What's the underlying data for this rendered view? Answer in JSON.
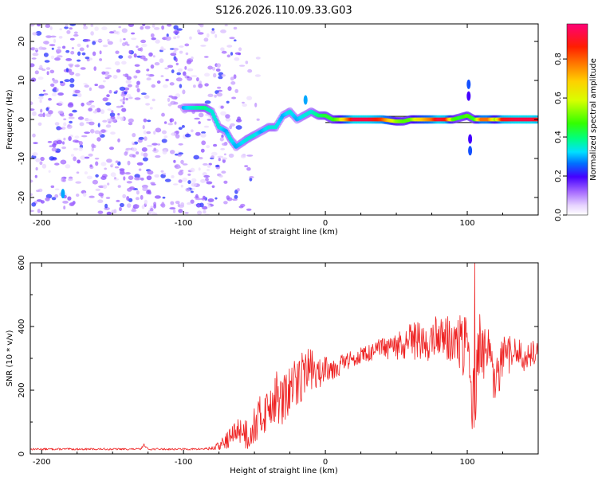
{
  "title": "S126.2026.110.09.33.G03",
  "chart_data": [
    {
      "type": "heatmap",
      "name": "spectrogram",
      "xlabel": "Height of straight line (km)",
      "ylabel": "Frequency (Hz)",
      "xlim": [
        -208,
        150
      ],
      "ylim": [
        -24.5,
        24.5
      ],
      "x_ticks": [
        -200,
        -100,
        0,
        100
      ],
      "x_tick_labels": [
        "-200",
        "-100",
        "0",
        "100"
      ],
      "y_ticks": [
        -20,
        -10,
        0,
        10,
        20
      ],
      "y_tick_labels": [
        "-20",
        "-10",
        "0",
        "10",
        "20"
      ],
      "colorbar": {
        "label": "Normalized spectral amplitude",
        "range": [
          0,
          0.98
        ],
        "ticks": [
          0.0,
          0.2,
          0.4,
          0.6,
          0.8
        ],
        "tick_labels": [
          "0.0",
          "0.2",
          "0.4",
          "0.6",
          "0.8"
        ]
      },
      "ridge": [
        {
          "x": -100,
          "y": 3,
          "a": 0.3
        },
        {
          "x": -95,
          "y": 3,
          "a": 0.35
        },
        {
          "x": -85,
          "y": 3,
          "a": 0.4
        },
        {
          "x": -80,
          "y": 2,
          "a": 0.35
        },
        {
          "x": -75,
          "y": -2,
          "a": 0.35
        },
        {
          "x": -70,
          "y": -3,
          "a": 0.3
        },
        {
          "x": -67,
          "y": -5,
          "a": 0.35
        },
        {
          "x": -63,
          "y": -7,
          "a": 0.3
        },
        {
          "x": -55,
          "y": -5,
          "a": 0.35
        },
        {
          "x": -50,
          "y": -4,
          "a": 0.35
        },
        {
          "x": -45,
          "y": -3,
          "a": 0.3
        },
        {
          "x": -40,
          "y": -2,
          "a": 0.35
        },
        {
          "x": -35,
          "y": -2,
          "a": 0.35
        },
        {
          "x": -30,
          "y": 1,
          "a": 0.3
        },
        {
          "x": -25,
          "y": 2,
          "a": 0.35
        },
        {
          "x": -20,
          "y": 0,
          "a": 0.3
        },
        {
          "x": -15,
          "y": 1,
          "a": 0.35
        },
        {
          "x": -10,
          "y": 2,
          "a": 0.35
        },
        {
          "x": -5,
          "y": 1,
          "a": 0.4
        },
        {
          "x": 0,
          "y": 1,
          "a": 0.45
        },
        {
          "x": 5,
          "y": 0,
          "a": 0.45
        },
        {
          "x": 10,
          "y": 0,
          "a": 0.55
        },
        {
          "x": 20,
          "y": 0,
          "a": 0.95
        },
        {
          "x": 30,
          "y": 0,
          "a": 0.95
        },
        {
          "x": 40,
          "y": 0,
          "a": 0.85
        },
        {
          "x": 50,
          "y": -0.5,
          "a": 0.55
        },
        {
          "x": 55,
          "y": -0.5,
          "a": 0.5
        },
        {
          "x": 60,
          "y": 0,
          "a": 0.5
        },
        {
          "x": 65,
          "y": 0,
          "a": 0.65
        },
        {
          "x": 75,
          "y": 0,
          "a": 0.8
        },
        {
          "x": 80,
          "y": 0,
          "a": 0.95
        },
        {
          "x": 85,
          "y": 0,
          "a": 0.9
        },
        {
          "x": 90,
          "y": 0,
          "a": 0.5
        },
        {
          "x": 95,
          "y": 0.5,
          "a": 0.45
        },
        {
          "x": 100,
          "y": 1,
          "a": 0.5
        },
        {
          "x": 105,
          "y": 0,
          "a": 0.45
        },
        {
          "x": 110,
          "y": 0,
          "a": 0.8
        },
        {
          "x": 115,
          "y": 0,
          "a": 0.8
        },
        {
          "x": 120,
          "y": 0,
          "a": 0.55
        },
        {
          "x": 125,
          "y": 0,
          "a": 0.9
        },
        {
          "x": 135,
          "y": 0,
          "a": 0.95
        },
        {
          "x": 145,
          "y": 0,
          "a": 0.95
        },
        {
          "x": 150,
          "y": 0,
          "a": 0.9
        }
      ],
      "features": [
        {
          "x": 101,
          "y": 9,
          "a": 0.25
        },
        {
          "x": 101,
          "y": 6,
          "a": 0.2
        },
        {
          "x": 102,
          "y": -5,
          "a": 0.2
        },
        {
          "x": 102,
          "y": -8,
          "a": 0.25
        },
        {
          "x": -14,
          "y": 5,
          "a": 0.3
        },
        {
          "x": -185,
          "y": -19,
          "a": 0.3
        }
      ],
      "noise": {
        "x_range": [
          -208,
          -45
        ],
        "y_range": [
          -24.5,
          24.5
        ],
        "seed": 7,
        "count": 900,
        "level": 0.1
      }
    },
    {
      "type": "line",
      "name": "snr",
      "xlabel": "Height of straight line (km)",
      "ylabel": "SNR (10 * v/v)",
      "xlim": [
        -208,
        150
      ],
      "ylim": [
        0,
        600
      ],
      "x_ticks": [
        -200,
        -100,
        0,
        100
      ],
      "x_tick_labels": [
        "-200",
        "-100",
        "0",
        "100"
      ],
      "y_ticks": [
        0,
        200,
        400,
        600
      ],
      "y_tick_labels": [
        "0",
        "200",
        "400",
        "600"
      ],
      "color": "#ee2222",
      "series": [
        {
          "name": "SNR",
          "x": [
            -208,
            -180,
            -150,
            -130,
            -128,
            -125,
            -110,
            -90,
            -80,
            -75,
            -70,
            -65,
            -60,
            -55,
            -50,
            -45,
            -40,
            -35,
            -30,
            -25,
            -20,
            -15,
            -10,
            -5,
            0,
            5,
            10,
            15,
            20,
            25,
            30,
            35,
            40,
            45,
            50,
            55,
            60,
            65,
            70,
            75,
            80,
            85,
            90,
            95,
            100,
            103,
            105,
            108,
            110,
            115,
            120,
            125,
            130,
            135,
            140,
            145,
            150
          ],
          "y": [
            15,
            15,
            15,
            15,
            30,
            15,
            15,
            15,
            17,
            25,
            40,
            60,
            80,
            60,
            90,
            120,
            150,
            180,
            160,
            200,
            220,
            260,
            270,
            240,
            280,
            270,
            280,
            290,
            300,
            310,
            315,
            320,
            335,
            325,
            340,
            330,
            350,
            360,
            340,
            355,
            380,
            365,
            350,
            345,
            320,
            240,
            120,
            360,
            330,
            300,
            210,
            300,
            310,
            320,
            300,
            310,
            330
          ],
          "jitter": [
            3,
            3,
            3,
            3,
            3,
            3,
            3,
            3,
            6,
            15,
            25,
            35,
            45,
            55,
            60,
            70,
            75,
            80,
            85,
            85,
            85,
            75,
            65,
            55,
            45,
            40,
            35,
            30,
            25,
            25,
            25,
            30,
            35,
            40,
            45,
            55,
            60,
            60,
            60,
            60,
            65,
            70,
            80,
            90,
            110,
            140,
            140,
            110,
            100,
            90,
            80,
            70,
            60,
            50,
            40,
            40,
            40
          ],
          "seed": 13,
          "samples": 1000
        }
      ]
    }
  ]
}
